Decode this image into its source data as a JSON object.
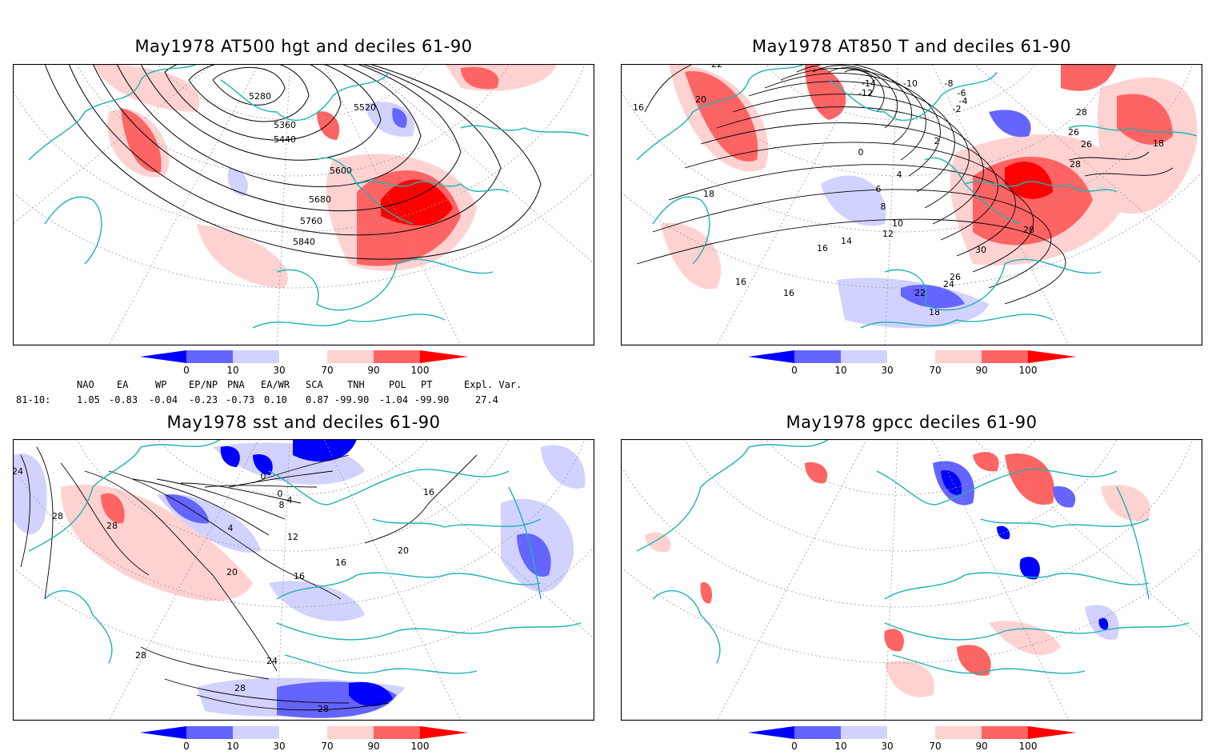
{
  "panels": [
    {
      "title": "May1978 AT500 hgt and deciles 61-90",
      "contour_labels": [
        "5280",
        "5360",
        "5440",
        "5520",
        "5600",
        "5680",
        "5760",
        "5840"
      ]
    },
    {
      "title": "May1978 AT850 T and deciles 61-90",
      "contour_labels": [
        "-14",
        "-12",
        "-10",
        "-8",
        "-6",
        "-4",
        "-2",
        "0",
        "2",
        "4",
        "6",
        "8",
        "10",
        "12",
        "14",
        "16",
        "16",
        "16",
        "18",
        "18",
        "20",
        "22",
        "22",
        "24",
        "26",
        "26",
        "26",
        "28",
        "28",
        "28",
        "30",
        "18",
        "16"
      ]
    },
    {
      "title": "May1978 sst and deciles 61-90",
      "contour_labels": [
        "24",
        "28",
        "28",
        "0",
        "0",
        "4",
        "8",
        "12",
        "4",
        "16",
        "16",
        "20",
        "16",
        "20",
        "24",
        "28",
        "28",
        "28"
      ]
    },
    {
      "title": "May1978 gpcc deciles 61-90",
      "contour_labels": []
    }
  ],
  "colorbar": {
    "ticks": [
      "0",
      "10",
      "30",
      "70",
      "90",
      "100"
    ],
    "colors": [
      "#0000ff",
      "#6464ff",
      "#d2d2ff",
      "#ffffff",
      "#ffd2d2",
      "#ff6464",
      "#ff0000"
    ]
  },
  "indices": {
    "headers": [
      "NAO",
      "EA",
      "WP",
      "EP/NP",
      "PNA",
      "EA/WR",
      "SCA",
      "TNH",
      "POL",
      "PT",
      "Expl. Var."
    ],
    "row_label": "81-10:",
    "values": [
      "1.05",
      "-0.83",
      "-0.04",
      "-0.23",
      "-0.73",
      "0.10",
      "0.87",
      "-99.90",
      "-1.04",
      "-99.90",
      "27.4"
    ]
  },
  "style": {
    "coast_color": "#20b2b2",
    "grid_color": "#999999"
  }
}
